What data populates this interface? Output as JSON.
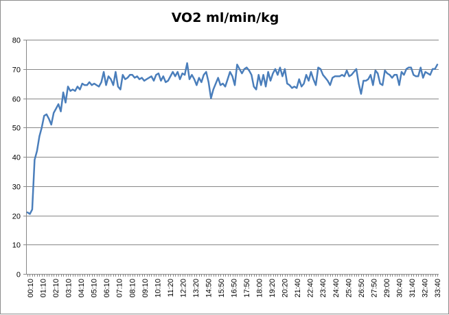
{
  "chart_data": {
    "type": "line",
    "title": "VO2 ml/min/kg",
    "xlabel": "",
    "ylabel": "",
    "ylim": [
      0,
      80
    ],
    "yticks": [
      0,
      10,
      20,
      30,
      40,
      50,
      60,
      70,
      80
    ],
    "grid": true,
    "legend": "none",
    "line_color": "#4a7ebb",
    "grid_color": "#868686",
    "x_tick_labels": [
      "00:10",
      "01:10",
      "02:10",
      "03:10",
      "04:10",
      "05:10",
      "06:10",
      "07:10",
      "08:10",
      "09:10",
      "10:10",
      "11:20",
      "12:20",
      "13:20",
      "14:50",
      "15:50",
      "16:50",
      "17:50",
      "18:00",
      "19:20",
      "20:20",
      "21:40",
      "22:40",
      "23:40",
      "24:40",
      "25:40",
      "26:50",
      "27:50",
      "29:00",
      "30:40",
      "31:40",
      "32:40",
      "33:40"
    ],
    "series": [
      {
        "values": [
          21,
          20.5,
          22,
          39,
          42,
          47,
          50,
          54,
          54.5,
          53,
          51,
          55,
          56.5,
          58,
          55.5,
          62,
          58.5,
          64,
          62.5,
          63,
          62.5,
          64,
          63,
          65,
          64.5,
          64.5,
          65.5,
          64.5,
          65,
          64.5,
          64,
          65.5,
          69,
          64.5,
          67.5,
          66.5,
          64.5,
          69,
          64,
          63,
          68,
          66.5,
          67,
          68,
          68,
          67,
          67.5,
          66.5,
          67,
          66,
          66.5,
          67,
          67.5,
          66,
          68,
          68.5,
          66,
          67.5,
          65.5,
          66,
          67.5,
          69,
          67.5,
          69,
          66.5,
          68.5,
          68,
          72,
          66.5,
          68,
          66.5,
          64.5,
          67,
          65.5,
          68,
          69,
          65.5,
          60,
          63,
          65,
          67,
          64.5,
          65,
          64,
          66.5,
          69,
          67.5,
          64.5,
          71.5,
          70,
          68.5,
          70,
          70.5,
          69.5,
          68,
          64,
          63,
          68,
          64.5,
          68,
          64,
          69,
          66,
          68.5,
          70,
          68,
          70.5,
          67.5,
          70,
          65,
          64.5,
          63.5,
          64,
          63.5,
          66.5,
          64,
          65,
          68,
          66,
          69,
          66.5,
          64.5,
          70.5,
          70,
          68,
          67,
          66,
          64.5,
          67,
          67.5,
          67.5,
          67.5,
          68,
          67.5,
          69.5,
          67.5,
          68,
          69,
          70,
          65,
          61.5,
          66,
          66,
          66.5,
          68,
          64.5,
          69.5,
          68.5,
          65,
          64.5,
          69.5,
          68.5,
          68,
          67,
          68,
          68,
          64.5,
          69,
          68,
          70,
          70.5,
          70.5,
          68,
          67.5,
          67.5,
          70.5,
          67,
          69,
          68.5,
          68,
          70,
          70,
          71.5
        ]
      }
    ]
  }
}
